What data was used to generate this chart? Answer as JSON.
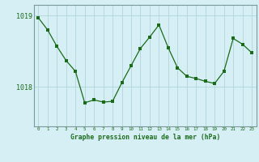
{
  "x": [
    0,
    1,
    2,
    3,
    4,
    5,
    6,
    7,
    8,
    9,
    10,
    11,
    12,
    13,
    14,
    15,
    16,
    17,
    18,
    19,
    20,
    21,
    22,
    23
  ],
  "y": [
    1018.97,
    1018.8,
    1018.57,
    1018.37,
    1018.22,
    1017.78,
    1017.82,
    1017.79,
    1017.8,
    1018.06,
    1018.3,
    1018.54,
    1018.7,
    1018.87,
    1018.55,
    1018.27,
    1018.15,
    1018.12,
    1018.08,
    1018.05,
    1018.22,
    1018.68,
    1018.6,
    1018.48
  ],
  "line_color": "#1a6b1a",
  "marker_color": "#1a6b1a",
  "bg_color": "#d6eff5",
  "grid_color": "#b8d8e0",
  "text_color": "#1a6b1a",
  "xlabel": "Graphe pression niveau de la mer (hPa)",
  "ytick_labels": [
    "1018",
    "1019"
  ],
  "ytick_values": [
    1018,
    1019
  ],
  "ylim": [
    1017.45,
    1019.15
  ],
  "xlim": [
    -0.5,
    23.5
  ],
  "font_family": "monospace"
}
